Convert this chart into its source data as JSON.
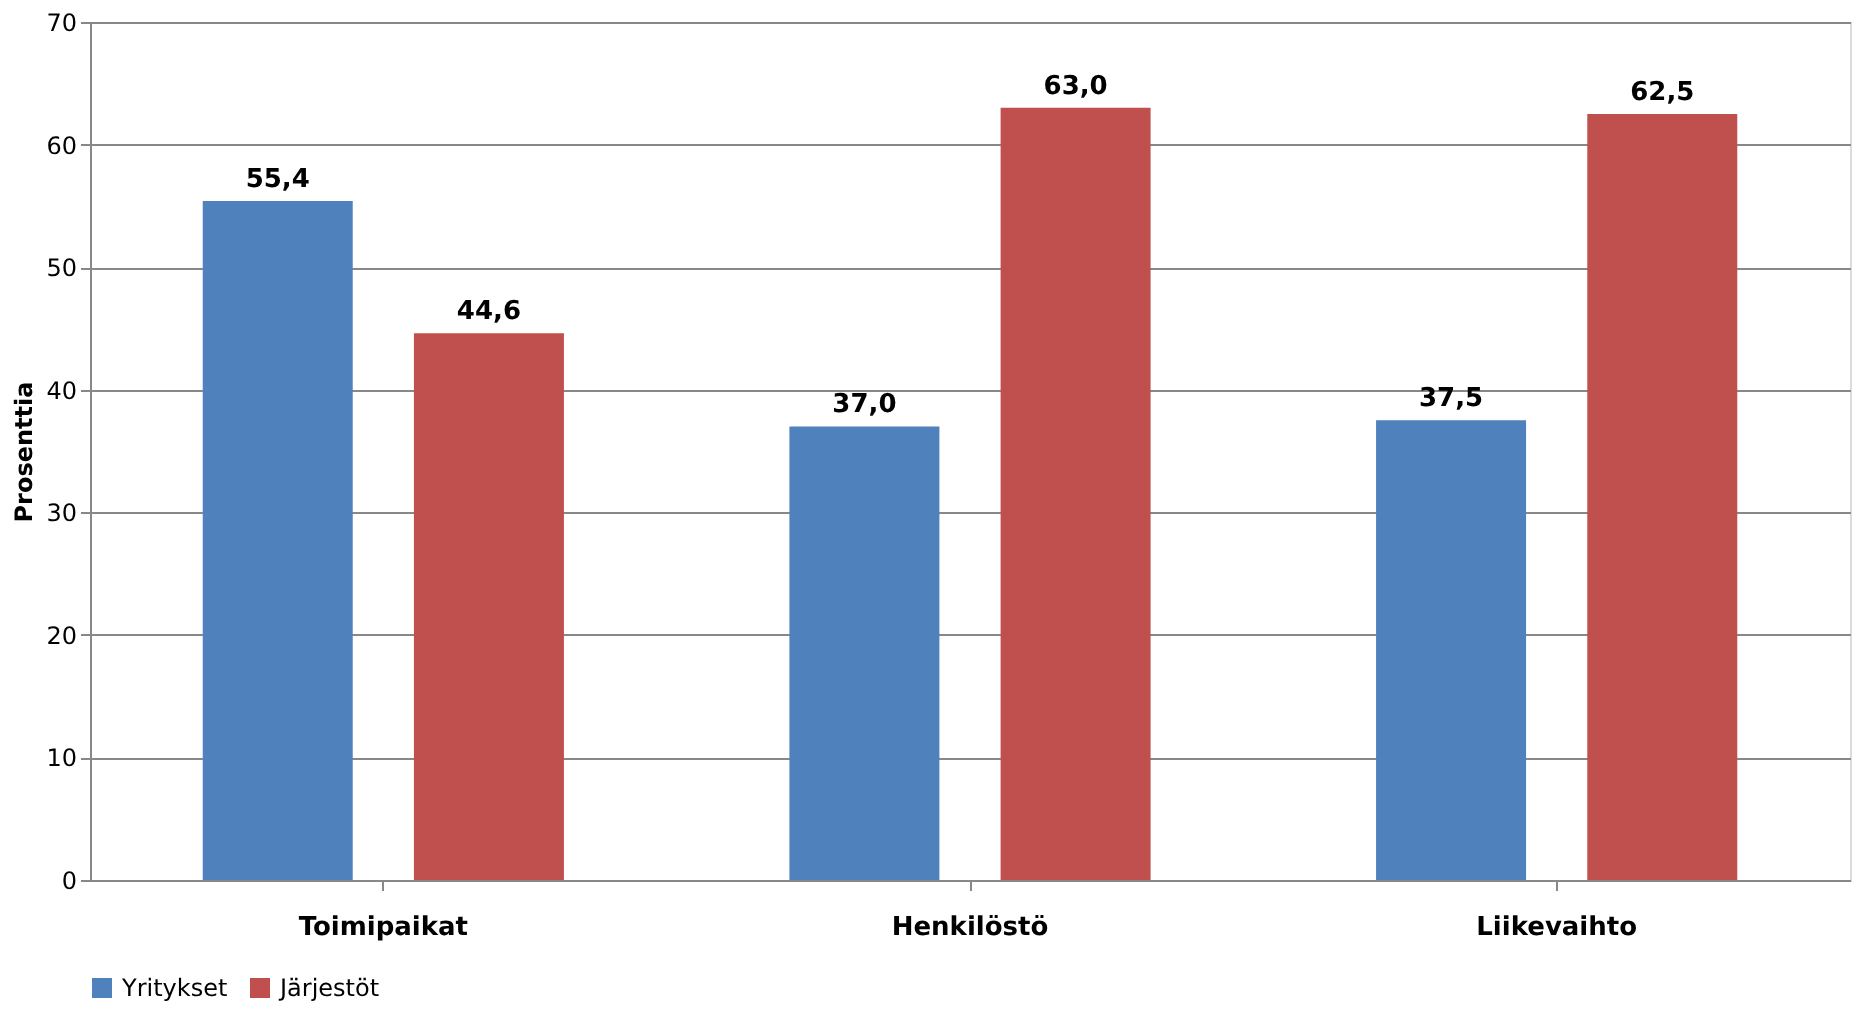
{
  "chart_data": {
    "type": "bar",
    "ylabel": "Prosenttia",
    "categories": [
      "Toimipaikat",
      "Henkilöstö",
      "Liikevaihto"
    ],
    "series": [
      {
        "name": "Yritykset",
        "color": "#4f81bd",
        "values": [
          55.4,
          37.0,
          37.5
        ],
        "value_labels": [
          "55,4",
          "37,0",
          "37,5"
        ]
      },
      {
        "name": "Järjestöt",
        "color": "#c0504d",
        "values": [
          44.6,
          63.0,
          62.5
        ],
        "value_labels": [
          "44,6",
          "63,0",
          "62,5"
        ]
      }
    ],
    "ylim": [
      0,
      70
    ],
    "yticks": [
      0,
      10,
      20,
      30,
      40,
      50,
      60,
      70
    ],
    "grid": "y",
    "legend": "bottom"
  }
}
